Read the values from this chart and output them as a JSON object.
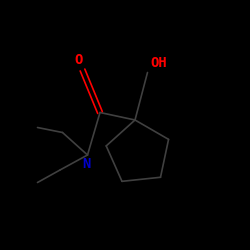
{
  "bg_color": "#000000",
  "bond_color": "#404040",
  "O_color": "#ff0000",
  "N_color": "#0000cc",
  "label_O": "O",
  "label_OH": "OH",
  "label_N": "N",
  "figsize": [
    2.5,
    2.5
  ],
  "dpi": 100,
  "bond_lw": 1.2,
  "font_size": 10
}
